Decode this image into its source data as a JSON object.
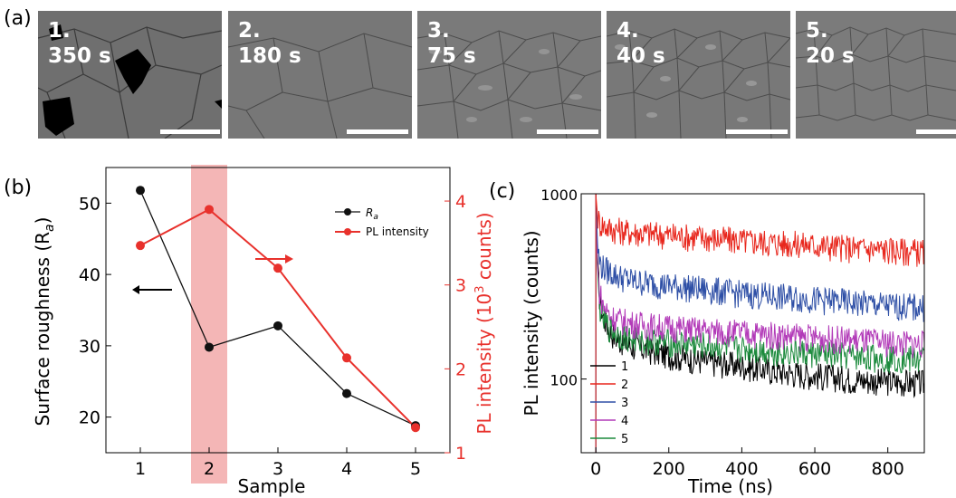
{
  "panel_a": {
    "label": "(a)",
    "images": [
      {
        "num": "1.",
        "time": "350 s"
      },
      {
        "num": "2.",
        "time": "180 s"
      },
      {
        "num": "3.",
        "time": "75 s"
      },
      {
        "num": "4.",
        "time": "40 s"
      },
      {
        "num": "5.",
        "time": "20 s"
      }
    ]
  },
  "colors": {
    "black_series": "#111111",
    "red_series": "#e8312c",
    "highlight": "#f4b6b6",
    "c1": "#000000",
    "c2": "#e8271d",
    "c3": "#2e4fa6",
    "c4": "#b23ab8",
    "c5": "#1b8a3c"
  },
  "chart_data": [
    {
      "type": "line",
      "panel_label": "(b)",
      "xlabel": "Sample",
      "ylabel_left": "Surface roughness (R",
      "ylabel_left_sub": "a",
      "ylabel_left_end": ")",
      "ylabel_right": "PL intensity (10",
      "ylabel_right_sup": "3",
      "ylabel_right_end": " counts)",
      "categories": [
        "1",
        "2",
        "3",
        "4",
        "5"
      ],
      "x": [
        1,
        2,
        3,
        4,
        5
      ],
      "xlim": [
        0.5,
        5.5
      ],
      "ylim_left": [
        15,
        55
      ],
      "ylim_right": [
        1,
        4.4
      ],
      "yticks_left": [
        20,
        30,
        40,
        50
      ],
      "yticks_right": [
        1,
        2,
        3,
        4
      ],
      "highlight_x": 2,
      "series": [
        {
          "name": "R",
          "name_sub": "a",
          "axis": "left",
          "values": [
            51.8,
            29.8,
            32.8,
            23.3,
            18.8
          ]
        },
        {
          "name": "PL intensity",
          "axis": "right",
          "values": [
            3.47,
            3.9,
            3.2,
            2.13,
            1.3
          ]
        }
      ],
      "legend_position": "top-right"
    },
    {
      "type": "line",
      "panel_label": "(c)",
      "xlabel": "Time (ns)",
      "ylabel": "PL intensity (counts)",
      "xlim": [
        -40,
        900
      ],
      "xticks": [
        0,
        200,
        400,
        600,
        800
      ],
      "ylim": [
        40,
        1000
      ],
      "yscale": "log",
      "yticks": [
        100,
        1000
      ],
      "yticklabels": [
        "100",
        "1000"
      ],
      "series": [
        {
          "name": "1",
          "x": [
            0,
            5,
            10,
            20,
            40,
            60,
            100,
            200,
            300,
            400,
            500,
            600,
            700,
            800,
            900
          ],
          "values": [
            1000,
            400,
            280,
            220,
            180,
            165,
            150,
            135,
            125,
            118,
            110,
            105,
            100,
            97,
            95
          ]
        },
        {
          "name": "2",
          "x": [
            0,
            5,
            10,
            20,
            40,
            60,
            100,
            200,
            300,
            400,
            500,
            600,
            700,
            800,
            900
          ],
          "values": [
            1000,
            760,
            700,
            680,
            650,
            640,
            620,
            600,
            580,
            560,
            545,
            530,
            510,
            500,
            485
          ]
        },
        {
          "name": "3",
          "x": [
            0,
            5,
            10,
            20,
            40,
            60,
            100,
            200,
            300,
            400,
            500,
            600,
            700,
            800,
            900
          ],
          "values": [
            1000,
            520,
            430,
            400,
            380,
            360,
            340,
            320,
            305,
            290,
            280,
            270,
            260,
            250,
            245
          ]
        },
        {
          "name": "4",
          "x": [
            0,
            5,
            10,
            20,
            40,
            60,
            100,
            200,
            300,
            400,
            500,
            600,
            700,
            800,
            900
          ],
          "values": [
            1000,
            380,
            300,
            250,
            220,
            210,
            200,
            190,
            183,
            178,
            173,
            168,
            163,
            158,
            155
          ]
        },
        {
          "name": "5",
          "x": [
            0,
            5,
            10,
            20,
            40,
            60,
            100,
            200,
            300,
            400,
            500,
            600,
            700,
            800,
            900
          ],
          "values": [
            1000,
            340,
            250,
            210,
            185,
            175,
            165,
            158,
            152,
            146,
            141,
            137,
            133,
            130,
            128
          ]
        }
      ],
      "legend_position": "bottom-left"
    }
  ]
}
